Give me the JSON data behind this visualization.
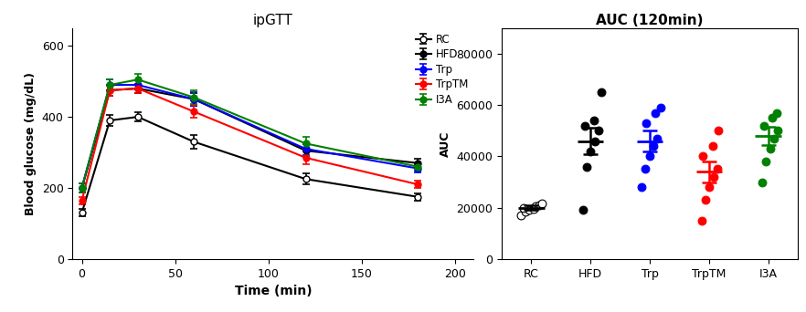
{
  "title_left": "ipGTT",
  "title_right": "AUC (120min)",
  "xlabel_left": "Time (min)",
  "ylabel_left": "Blood glucose (mg/dL)",
  "ylabel_right": "AUC",
  "time_points": [
    0,
    15,
    30,
    60,
    120,
    180
  ],
  "series": {
    "RC": {
      "mean": [
        130,
        390,
        400,
        330,
        225,
        175
      ],
      "sem": [
        10,
        15,
        12,
        20,
        15,
        10
      ],
      "color": "#000000",
      "filled": false
    },
    "HFD": {
      "mean": [
        200,
        475,
        480,
        450,
        305,
        270
      ],
      "sem": [
        12,
        15,
        12,
        18,
        18,
        12
      ],
      "color": "#000000",
      "filled": true
    },
    "Trp": {
      "mean": [
        200,
        490,
        490,
        450,
        310,
        255
      ],
      "sem": [
        12,
        15,
        12,
        20,
        18,
        12
      ],
      "color": "#0000ff",
      "filled": true
    },
    "TrpTM": {
      "mean": [
        165,
        475,
        480,
        415,
        285,
        210
      ],
      "sem": [
        10,
        15,
        12,
        18,
        18,
        10
      ],
      "color": "#ff0000",
      "filled": true
    },
    "I3A": {
      "mean": [
        200,
        490,
        505,
        455,
        325,
        260
      ],
      "sem": [
        12,
        15,
        15,
        20,
        18,
        10
      ],
      "color": "#008000",
      "filled": true
    }
  },
  "legend_order": [
    "RC",
    "HFD",
    "Trp",
    "TrpTM",
    "I3A"
  ],
  "ylim_left": [
    0,
    650
  ],
  "yticks_left": [
    0,
    200,
    400,
    600
  ],
  "xlim_left": [
    -5,
    210
  ],
  "xticks_left": [
    0,
    50,
    100,
    150,
    200
  ],
  "auc_categories": [
    "RC",
    "HFD",
    "Trp",
    "TrpTM",
    "I3A"
  ],
  "auc_colors": [
    "#000000",
    "#000000",
    "#0000ff",
    "#ff0000",
    "#008000"
  ],
  "auc_filled": [
    false,
    true,
    true,
    true,
    true
  ],
  "auc_data": {
    "RC": [
      17000,
      18500,
      19000,
      19500,
      20000,
      20500,
      21000,
      21500
    ],
    "HFD": [
      19000,
      36000,
      42000,
      46000,
      50000,
      52000,
      54000,
      65000
    ],
    "Trp": [
      28000,
      35000,
      40000,
      44000,
      47000,
      53000,
      57000,
      59000
    ],
    "TrpTM": [
      15000,
      23000,
      28000,
      32000,
      35000,
      40000,
      44000,
      50000
    ],
    "I3A": [
      30000,
      38000,
      43000,
      47000,
      50000,
      52000,
      55000,
      57000
    ]
  },
  "auc_mean": {
    "RC": 20000,
    "HFD": 46000,
    "Trp": 46000,
    "TrpTM": 34000,
    "I3A": 48000
  },
  "auc_sem": {
    "RC": 800,
    "HFD": 5000,
    "Trp": 4000,
    "TrpTM": 4000,
    "I3A": 3500
  },
  "ylim_right": [
    0,
    90000
  ],
  "yticks_right": [
    0,
    20000,
    40000,
    60000,
    80000
  ],
  "background_color": "#ffffff"
}
